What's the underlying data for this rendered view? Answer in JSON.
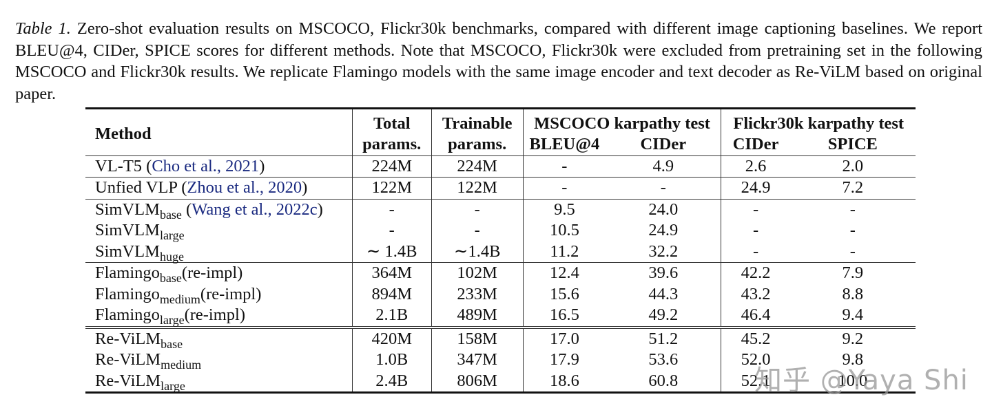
{
  "caption": {
    "label": "Table 1.",
    "text": " Zero-shot evaluation results on MSCOCO, Flickr30k benchmarks, compared with different image captioning baselines. We report BLEU@4, CIDer, SPICE scores for different methods. Note that MSCOCO, Flickr30k were excluded from pretraining set in the following MSCOCO and Flickr30k results. We replicate Flamingo models with the same image encoder and text decoder as Re-ViLM based on original paper."
  },
  "table": {
    "headers": {
      "method": "Method",
      "total_line1": "Total",
      "total_line2": "params.",
      "trainable_line1": "Trainable",
      "trainable_line2": "params.",
      "mscoco_group": "MSCOCO karpathy test",
      "mscoco_bleu": "BLEU@4",
      "mscoco_cider": "CIDer",
      "flickr_group": "Flickr30k karpathy test",
      "flickr_cider": "CIDer",
      "flickr_spice": "SPICE"
    },
    "rows": [
      {
        "name": "VL-T5",
        "sub": "",
        "suffix": "",
        "cite": "Cho et al., 2021",
        "total": "224M",
        "trainable": "224M",
        "bleu": "-",
        "cider": "4.9",
        "f_cider": "2.6",
        "f_spice": "2.0"
      },
      {
        "name": "Unfied VLP",
        "sub": "",
        "suffix": "",
        "cite": "Zhou et al., 2020",
        "total": "122M",
        "trainable": "122M",
        "bleu": "-",
        "cider": "-",
        "f_cider": "24.9",
        "f_spice": "7.2"
      },
      {
        "name": "SimVLM",
        "sub": "base",
        "suffix": "",
        "cite": "Wang et al., 2022c",
        "total": "-",
        "trainable": "-",
        "bleu": "9.5",
        "cider": "24.0",
        "f_cider": "-",
        "f_spice": "-"
      },
      {
        "name": "SimVLM",
        "sub": "large",
        "suffix": "",
        "cite": "",
        "total": "-",
        "trainable": "-",
        "bleu": "10.5",
        "cider": "24.9",
        "f_cider": "-",
        "f_spice": "-"
      },
      {
        "name": "SimVLM",
        "sub": "huge",
        "suffix": "",
        "cite": "",
        "total": "∼ 1.4B",
        "trainable": "∼1.4B",
        "bleu": "11.2",
        "cider": "32.2",
        "f_cider": "-",
        "f_spice": "-"
      },
      {
        "name": "Flamingo",
        "sub": "base",
        "suffix": "(re-impl)",
        "cite": "",
        "total": "364M",
        "trainable": "102M",
        "bleu": "12.4",
        "cider": "39.6",
        "f_cider": "42.2",
        "f_spice": "7.9"
      },
      {
        "name": "Flamingo",
        "sub": "medium",
        "suffix": "(re-impl)",
        "cite": "",
        "total": "894M",
        "trainable": "233M",
        "bleu": "15.6",
        "cider": "44.3",
        "f_cider": "43.2",
        "f_spice": "8.8"
      },
      {
        "name": "Flamingo",
        "sub": "large",
        "suffix": "(re-impl)",
        "cite": "",
        "total": "2.1B",
        "trainable": "489M",
        "bleu": "16.5",
        "cider": "49.2",
        "f_cider": "46.4",
        "f_spice": "9.4"
      },
      {
        "name": "Re-ViLM",
        "sub": "base",
        "suffix": "",
        "cite": "",
        "total": "420M",
        "trainable": "158M",
        "bleu": "17.0",
        "cider": "51.2",
        "f_cider": "45.2",
        "f_spice": "9.2"
      },
      {
        "name": "Re-ViLM",
        "sub": "medium",
        "suffix": "",
        "cite": "",
        "total": "1.0B",
        "trainable": "347M",
        "bleu": "17.9",
        "cider": "53.6",
        "f_cider": "52.0",
        "f_spice": "9.8"
      },
      {
        "name": "Re-ViLM",
        "sub": "large",
        "suffix": "",
        "cite": "",
        "total": "2.4B",
        "trainable": "806M",
        "bleu": "18.6",
        "cider": "60.8",
        "f_cider": "52.1",
        "f_spice": "10.0"
      }
    ]
  },
  "watermark": "知乎 @Yaya Shi",
  "colors": {
    "citation_link": "#1a2a80",
    "text": "#111111"
  }
}
